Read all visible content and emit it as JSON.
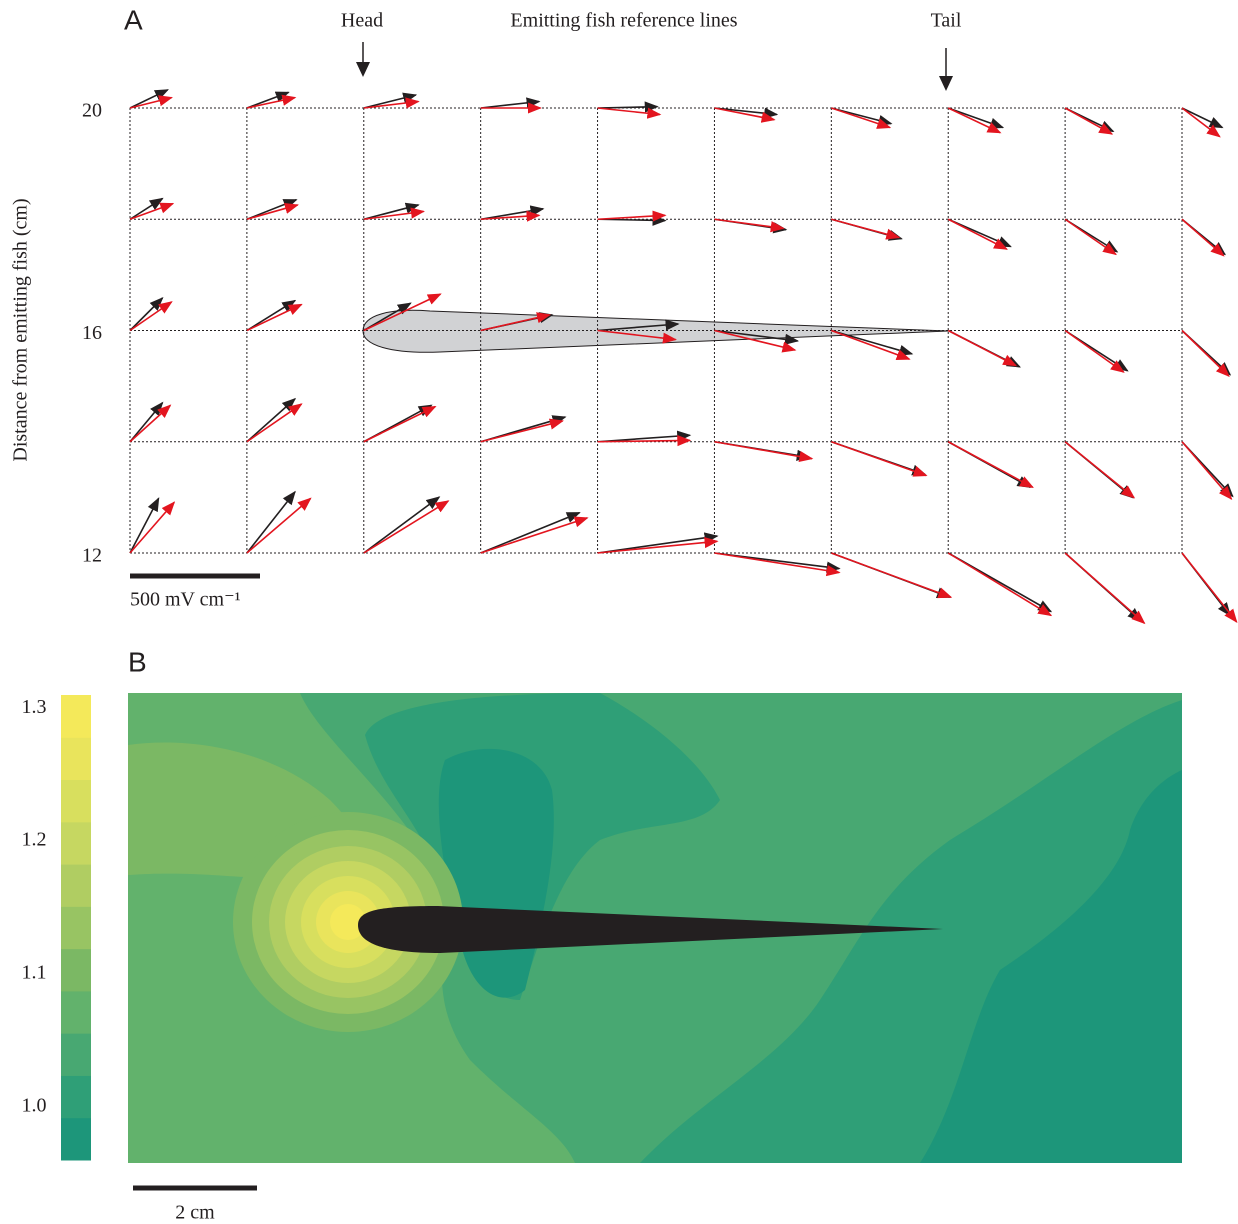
{
  "chart_data": [
    {
      "type": "quiver",
      "label": "A",
      "annotations": {
        "head": "Head",
        "reference": "Emitting fish reference lines",
        "tail": "Tail"
      },
      "ylabel": "Distance from emitting fish (cm)",
      "rows": [
        20,
        18,
        16,
        14,
        12
      ],
      "ylim": [
        12,
        20
      ],
      "yticks": [
        12,
        16,
        20
      ],
      "grid": true,
      "series": [
        {
          "color": "#231f20",
          "u": [
            [
              145,
              160,
              200,
              225,
              230,
              240,
              230,
              210,
              185,
              155
            ],
            [
              125,
              190,
              210,
              240,
              260,
              275,
              270,
              240,
              200,
              165
            ],
            [
              125,
              185,
              180,
              275,
              310,
              320,
              310,
              275,
              240,
              185
            ],
            [
              125,
              185,
              260,
              325,
              355,
              365,
              360,
              315,
              260,
              195
            ],
            [
              110,
              185,
              290,
              380,
              460,
              480,
              455,
              395,
              290,
              185
            ]
          ],
          "v": [
            [
              70,
              60,
              50,
              25,
              5,
              -25,
              -60,
              -75,
              -90,
              -75
            ],
            [
              80,
              75,
              55,
              40,
              -5,
              -40,
              -75,
              -105,
              -125,
              -135
            ],
            [
              125,
              115,
              105,
              60,
              25,
              -40,
              -90,
              -140,
              -155,
              -170
            ],
            [
              150,
              165,
              140,
              95,
              25,
              -60,
              -125,
              -175,
              -215,
              -210
            ],
            [
              210,
              235,
              215,
              155,
              65,
              -60,
              -170,
              -225,
              -260,
              -240
            ]
          ]
        },
        {
          "color": "#e3151f",
          "u": [
            [
              160,
              185,
              210,
              230,
              240,
              230,
              225,
              200,
              180,
              145
            ],
            [
              165,
              195,
              230,
              225,
              260,
              265,
              260,
              225,
              195,
              160
            ],
            [
              160,
              210,
              295,
              265,
              300,
              310,
              300,
              260,
              225,
              180
            ],
            [
              155,
              210,
              275,
              315,
              355,
              375,
              365,
              325,
              265,
              190
            ],
            [
              170,
              245,
              325,
              410,
              460,
              480,
              460,
              395,
              305,
              210
            ]
          ],
          "v": [
            [
              40,
              40,
              25,
              0,
              -25,
              -45,
              -75,
              -95,
              -100,
              -110
            ],
            [
              60,
              55,
              30,
              15,
              15,
              -35,
              -70,
              -115,
              -135,
              -140
            ],
            [
              110,
              100,
              140,
              60,
              -35,
              -75,
              -110,
              -135,
              -160,
              -175
            ],
            [
              140,
              145,
              135,
              80,
              5,
              -65,
              -130,
              -175,
              -215,
              -220
            ],
            [
              195,
              210,
              200,
              135,
              45,
              -75,
              -170,
              -240,
              -270,
              -265
            ]
          ]
        }
      ],
      "scale_bar": {
        "value": 500,
        "label": "500 mV cm⁻¹"
      }
    },
    {
      "type": "contour",
      "label": "B",
      "colors": [
        "#1d967a",
        "#2f9f77",
        "#48a872",
        "#62b26c",
        "#7bb864",
        "#98c463",
        "#b0cd62",
        "#c6d761",
        "#d8df5e",
        "#e9e45c",
        "#f4e95a"
      ],
      "clim": [
        0.96,
        1.31
      ],
      "cticks": [
        {
          "value": 1.0,
          "label": "1.0"
        },
        1.1,
        1.2,
        1.3
      ],
      "scale_bar": {
        "label": "2 cm"
      }
    }
  ]
}
